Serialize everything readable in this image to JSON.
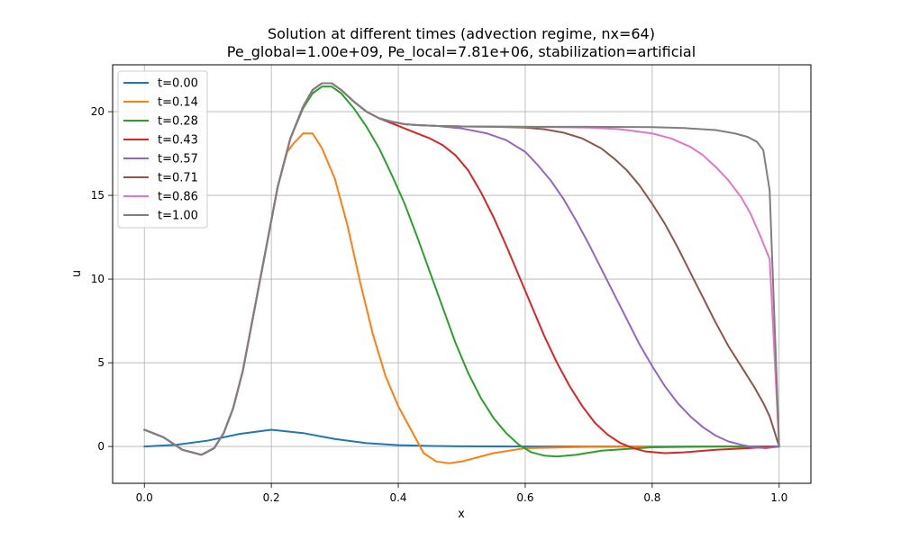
{
  "chart_data": {
    "type": "line",
    "title_line1": "Solution at different times (advection regime, nx=64)",
    "title_line2": "Pe_global=1.00e+09, Pe_local=7.81e+06, stabilization=artificial",
    "xlabel": "x",
    "ylabel": "u",
    "xlim": [
      -0.05,
      1.05
    ],
    "ylim": [
      -2.2,
      22.8
    ],
    "xticks": [
      0.0,
      0.2,
      0.4,
      0.6,
      0.8,
      1.0
    ],
    "xtick_labels": [
      "0.0",
      "0.2",
      "0.4",
      "0.6",
      "0.8",
      "1.0"
    ],
    "yticks": [
      0,
      5,
      10,
      15,
      20
    ],
    "ytick_labels": [
      "0",
      "5",
      "10",
      "15",
      "20"
    ],
    "grid": true,
    "legend_position": "top-left",
    "series": [
      {
        "name": "t=0.00",
        "color": "#1f77b4",
        "x": [
          0,
          0.05,
          0.1,
          0.15,
          0.2,
          0.25,
          0.3,
          0.35,
          0.4,
          0.45,
          0.5,
          0.6,
          0.7,
          0.8,
          0.9,
          1.0
        ],
        "y": [
          0,
          0.1,
          0.35,
          0.75,
          1.0,
          0.8,
          0.45,
          0.2,
          0.08,
          0.03,
          0.01,
          0,
          0,
          0,
          0,
          0
        ]
      },
      {
        "name": "t=0.14",
        "color": "#ff7f0e",
        "x": [
          0,
          0.03,
          0.06,
          0.09,
          0.11,
          0.125,
          0.14,
          0.155,
          0.17,
          0.19,
          0.21,
          0.225,
          0.235,
          0.25,
          0.265,
          0.28,
          0.3,
          0.32,
          0.34,
          0.36,
          0.38,
          0.4,
          0.42,
          0.44,
          0.46,
          0.48,
          0.5,
          0.55,
          0.6,
          0.7,
          0.8,
          0.9,
          1.0
        ],
        "y": [
          1.0,
          0.55,
          -0.2,
          -0.5,
          -0.1,
          0.8,
          2.3,
          4.5,
          7.5,
          11.5,
          15.5,
          17.6,
          18.1,
          18.7,
          18.7,
          17.8,
          16.0,
          13.2,
          9.8,
          6.7,
          4.2,
          2.4,
          1.0,
          -0.4,
          -0.9,
          -1.0,
          -0.9,
          -0.4,
          -0.1,
          -0.02,
          0,
          0,
          0
        ]
      },
      {
        "name": "t=0.28",
        "color": "#2ca02c",
        "x": [
          0,
          0.03,
          0.06,
          0.09,
          0.11,
          0.125,
          0.14,
          0.155,
          0.17,
          0.19,
          0.21,
          0.23,
          0.25,
          0.265,
          0.28,
          0.295,
          0.31,
          0.33,
          0.35,
          0.37,
          0.39,
          0.41,
          0.43,
          0.45,
          0.47,
          0.49,
          0.51,
          0.53,
          0.55,
          0.57,
          0.59,
          0.61,
          0.63,
          0.65,
          0.68,
          0.72,
          0.8,
          0.9,
          1.0
        ],
        "y": [
          1.0,
          0.55,
          -0.2,
          -0.5,
          -0.1,
          0.8,
          2.3,
          4.5,
          7.5,
          11.5,
          15.5,
          18.4,
          20.2,
          21.1,
          21.5,
          21.5,
          21.1,
          20.2,
          19.1,
          17.8,
          16.2,
          14.5,
          12.5,
          10.4,
          8.3,
          6.2,
          4.4,
          2.9,
          1.7,
          0.8,
          0.1,
          -0.35,
          -0.55,
          -0.6,
          -0.5,
          -0.25,
          -0.05,
          0,
          0
        ]
      },
      {
        "name": "t=0.43",
        "color": "#d62728",
        "x": [
          0,
          0.03,
          0.06,
          0.09,
          0.11,
          0.125,
          0.14,
          0.155,
          0.17,
          0.19,
          0.21,
          0.23,
          0.25,
          0.265,
          0.28,
          0.295,
          0.31,
          0.33,
          0.35,
          0.37,
          0.39,
          0.41,
          0.43,
          0.45,
          0.47,
          0.49,
          0.51,
          0.53,
          0.55,
          0.57,
          0.59,
          0.61,
          0.63,
          0.65,
          0.67,
          0.69,
          0.71,
          0.73,
          0.75,
          0.77,
          0.79,
          0.82,
          0.85,
          0.9,
          0.95,
          1.0
        ],
        "y": [
          1.0,
          0.55,
          -0.2,
          -0.5,
          -0.1,
          0.8,
          2.3,
          4.5,
          7.5,
          11.5,
          15.5,
          18.4,
          20.3,
          21.3,
          21.7,
          21.7,
          21.3,
          20.6,
          20.0,
          19.6,
          19.3,
          19.0,
          18.7,
          18.4,
          18.0,
          17.4,
          16.5,
          15.2,
          13.7,
          12.0,
          10.2,
          8.4,
          6.6,
          5.0,
          3.6,
          2.4,
          1.4,
          0.7,
          0.2,
          -0.1,
          -0.3,
          -0.4,
          -0.35,
          -0.2,
          -0.1,
          0
        ]
      },
      {
        "name": "t=0.57",
        "color": "#9467bd",
        "x": [
          0,
          0.03,
          0.06,
          0.09,
          0.11,
          0.125,
          0.14,
          0.155,
          0.17,
          0.19,
          0.21,
          0.23,
          0.25,
          0.265,
          0.28,
          0.295,
          0.31,
          0.33,
          0.35,
          0.37,
          0.39,
          0.41,
          0.43,
          0.46,
          0.5,
          0.54,
          0.57,
          0.6,
          0.62,
          0.64,
          0.66,
          0.68,
          0.7,
          0.72,
          0.74,
          0.76,
          0.78,
          0.8,
          0.82,
          0.84,
          0.86,
          0.88,
          0.9,
          0.92,
          0.94,
          0.96,
          0.98,
          1.0
        ],
        "y": [
          1.0,
          0.55,
          -0.2,
          -0.5,
          -0.1,
          0.8,
          2.3,
          4.5,
          7.5,
          11.5,
          15.5,
          18.4,
          20.3,
          21.3,
          21.7,
          21.7,
          21.3,
          20.6,
          20.0,
          19.6,
          19.4,
          19.25,
          19.2,
          19.15,
          19.0,
          18.7,
          18.3,
          17.6,
          16.8,
          15.9,
          14.8,
          13.5,
          12.1,
          10.6,
          9.1,
          7.6,
          6.1,
          4.8,
          3.6,
          2.6,
          1.8,
          1.15,
          0.65,
          0.3,
          0.1,
          -0.05,
          -0.1,
          0
        ]
      },
      {
        "name": "t=0.71",
        "color": "#8c564b",
        "x": [
          0,
          0.03,
          0.06,
          0.09,
          0.11,
          0.125,
          0.14,
          0.155,
          0.17,
          0.19,
          0.21,
          0.23,
          0.25,
          0.265,
          0.28,
          0.295,
          0.31,
          0.33,
          0.35,
          0.37,
          0.39,
          0.41,
          0.43,
          0.46,
          0.5,
          0.55,
          0.6,
          0.63,
          0.66,
          0.69,
          0.72,
          0.74,
          0.76,
          0.78,
          0.8,
          0.82,
          0.84,
          0.86,
          0.88,
          0.9,
          0.92,
          0.94,
          0.96,
          0.975,
          0.985,
          1.0
        ],
        "y": [
          1.0,
          0.55,
          -0.2,
          -0.5,
          -0.1,
          0.8,
          2.3,
          4.5,
          7.5,
          11.5,
          15.5,
          18.4,
          20.3,
          21.3,
          21.7,
          21.7,
          21.3,
          20.6,
          20.0,
          19.6,
          19.4,
          19.25,
          19.2,
          19.15,
          19.12,
          19.1,
          19.05,
          18.95,
          18.75,
          18.4,
          17.8,
          17.2,
          16.5,
          15.6,
          14.5,
          13.3,
          11.9,
          10.4,
          8.9,
          7.4,
          6.0,
          4.8,
          3.6,
          2.6,
          1.8,
          0
        ]
      },
      {
        "name": "t=0.86",
        "color": "#e377c2",
        "x": [
          0,
          0.03,
          0.06,
          0.09,
          0.11,
          0.125,
          0.14,
          0.155,
          0.17,
          0.19,
          0.21,
          0.23,
          0.25,
          0.265,
          0.28,
          0.295,
          0.31,
          0.33,
          0.35,
          0.37,
          0.39,
          0.41,
          0.43,
          0.46,
          0.5,
          0.6,
          0.7,
          0.75,
          0.8,
          0.83,
          0.86,
          0.88,
          0.9,
          0.92,
          0.94,
          0.955,
          0.97,
          0.985,
          1.0
        ],
        "y": [
          1.0,
          0.55,
          -0.2,
          -0.5,
          -0.1,
          0.8,
          2.3,
          4.5,
          7.5,
          11.5,
          15.5,
          18.4,
          20.3,
          21.3,
          21.7,
          21.7,
          21.3,
          20.6,
          20.0,
          19.6,
          19.4,
          19.25,
          19.2,
          19.15,
          19.12,
          19.1,
          19.05,
          18.95,
          18.7,
          18.4,
          17.9,
          17.4,
          16.7,
          15.9,
          14.9,
          13.9,
          12.6,
          11.2,
          0
        ]
      },
      {
        "name": "t=1.00",
        "color": "#7f7f7f",
        "x": [
          0,
          0.03,
          0.06,
          0.09,
          0.11,
          0.125,
          0.14,
          0.155,
          0.17,
          0.19,
          0.21,
          0.23,
          0.25,
          0.265,
          0.28,
          0.295,
          0.31,
          0.33,
          0.35,
          0.37,
          0.39,
          0.41,
          0.43,
          0.46,
          0.5,
          0.6,
          0.7,
          0.8,
          0.85,
          0.9,
          0.93,
          0.95,
          0.965,
          0.975,
          0.985,
          1.0
        ],
        "y": [
          1.0,
          0.55,
          -0.2,
          -0.5,
          -0.1,
          0.8,
          2.3,
          4.5,
          7.5,
          11.5,
          15.5,
          18.4,
          20.3,
          21.3,
          21.7,
          21.7,
          21.3,
          20.6,
          20.0,
          19.6,
          19.4,
          19.25,
          19.2,
          19.15,
          19.12,
          19.1,
          19.1,
          19.08,
          19.02,
          18.9,
          18.7,
          18.5,
          18.2,
          17.7,
          15.3,
          0
        ]
      }
    ]
  }
}
